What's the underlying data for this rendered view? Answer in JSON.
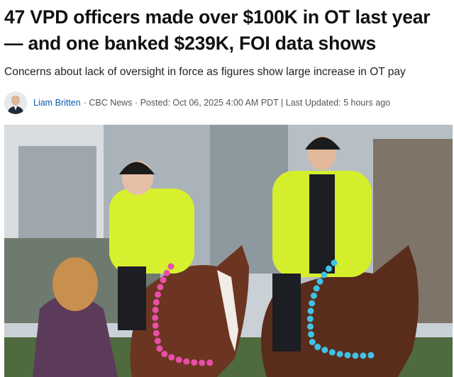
{
  "header": {
    "title": "47 VPD officers made over $100K in OT last year — and one banked $239K, FOI data shows",
    "subtitle": "Concerns about lack of oversight in force as figures show large increase in OT pay"
  },
  "byline": {
    "author": "Liam Britten",
    "details": "· CBC News · Posted: Oct 06, 2025 4:00 AM PDT | Last Updated: 5 hours ago"
  }
}
